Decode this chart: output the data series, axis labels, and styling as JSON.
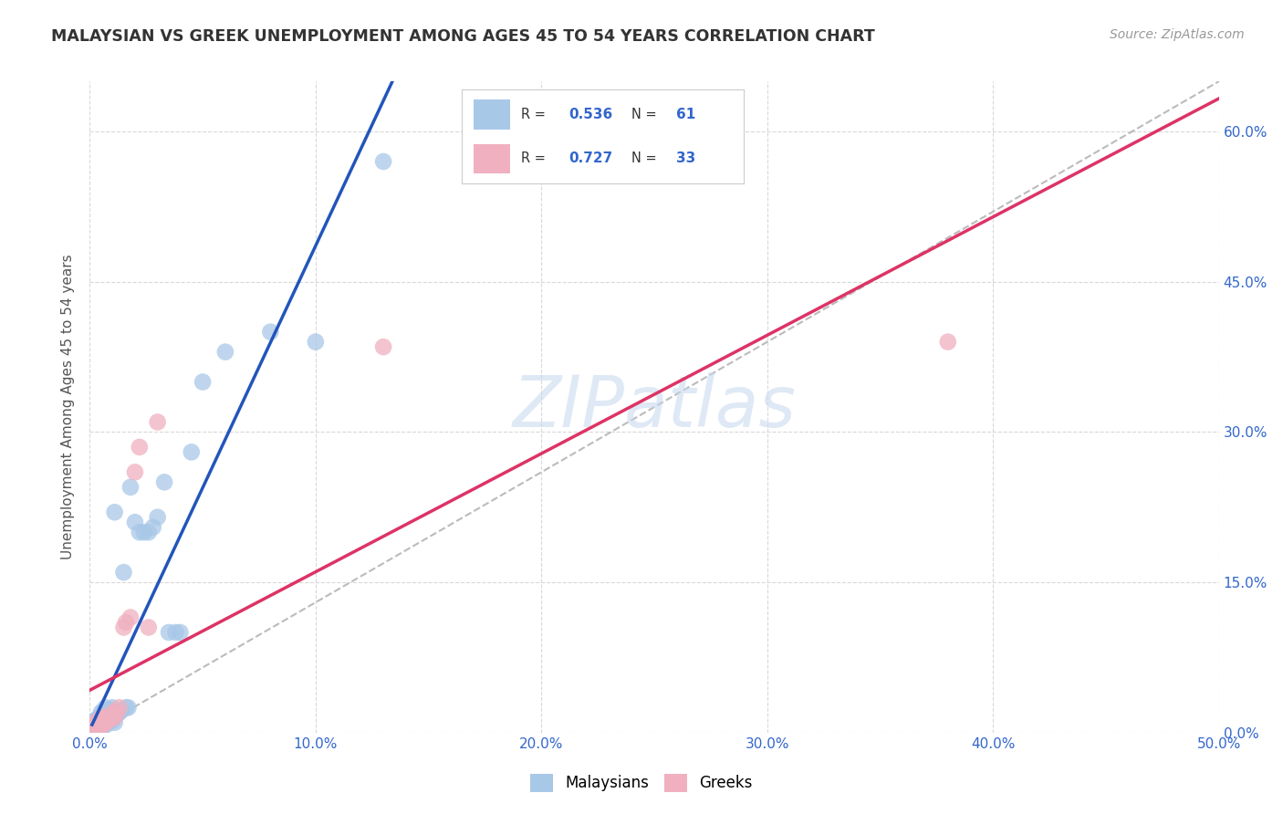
{
  "title": "MALAYSIAN VS GREEK UNEMPLOYMENT AMONG AGES 45 TO 54 YEARS CORRELATION CHART",
  "source": "Source: ZipAtlas.com",
  "ylabel": "Unemployment Among Ages 45 to 54 years",
  "xlim": [
    0.0,
    0.5
  ],
  "ylim": [
    0.0,
    0.65
  ],
  "xticks": [
    0.0,
    0.1,
    0.2,
    0.3,
    0.4,
    0.5
  ],
  "yticks": [
    0.0,
    0.15,
    0.3,
    0.45,
    0.6
  ],
  "ytick_labels_right": [
    "0.0%",
    "15.0%",
    "30.0%",
    "45.0%",
    "60.0%"
  ],
  "xtick_labels": [
    "0.0%",
    "10.0%",
    "20.0%",
    "30.0%",
    "40.0%",
    "50.0%"
  ],
  "background_color": "#ffffff",
  "grid_color": "#d8d8d8",
  "watermark": "ZIPatlas",
  "blue_color": "#a8c8e8",
  "pink_color": "#f0b0c0",
  "blue_line_color": "#2255bb",
  "pink_line_color": "#dd3366",
  "diag_color": "#bbbbbb",
  "r_blue": 0.536,
  "n_blue": 61,
  "r_pink": 0.727,
  "n_pink": 33,
  "malaysians_x": [
    0.001,
    0.001,
    0.001,
    0.001,
    0.002,
    0.002,
    0.002,
    0.002,
    0.002,
    0.003,
    0.003,
    0.003,
    0.003,
    0.003,
    0.003,
    0.004,
    0.004,
    0.004,
    0.004,
    0.005,
    0.005,
    0.005,
    0.005,
    0.005,
    0.006,
    0.006,
    0.006,
    0.007,
    0.007,
    0.007,
    0.008,
    0.008,
    0.009,
    0.009,
    0.01,
    0.01,
    0.011,
    0.011,
    0.012,
    0.013,
    0.014,
    0.015,
    0.016,
    0.017,
    0.018,
    0.02,
    0.022,
    0.024,
    0.026,
    0.028,
    0.03,
    0.033,
    0.035,
    0.038,
    0.04,
    0.045,
    0.05,
    0.06,
    0.08,
    0.1,
    0.13
  ],
  "malaysians_y": [
    0.005,
    0.006,
    0.007,
    0.008,
    0.004,
    0.006,
    0.008,
    0.01,
    0.012,
    0.004,
    0.005,
    0.007,
    0.008,
    0.01,
    0.012,
    0.005,
    0.007,
    0.01,
    0.015,
    0.005,
    0.007,
    0.009,
    0.012,
    0.02,
    0.006,
    0.01,
    0.022,
    0.008,
    0.012,
    0.025,
    0.009,
    0.016,
    0.011,
    0.023,
    0.012,
    0.025,
    0.01,
    0.22,
    0.018,
    0.02,
    0.022,
    0.16,
    0.025,
    0.025,
    0.245,
    0.21,
    0.2,
    0.2,
    0.2,
    0.205,
    0.215,
    0.25,
    0.1,
    0.1,
    0.1,
    0.28,
    0.35,
    0.38,
    0.4,
    0.39,
    0.57
  ],
  "greeks_x": [
    0.001,
    0.001,
    0.002,
    0.002,
    0.002,
    0.003,
    0.003,
    0.003,
    0.004,
    0.004,
    0.004,
    0.005,
    0.005,
    0.005,
    0.006,
    0.006,
    0.007,
    0.007,
    0.008,
    0.009,
    0.01,
    0.011,
    0.012,
    0.013,
    0.015,
    0.016,
    0.018,
    0.02,
    0.022,
    0.026,
    0.03,
    0.38,
    0.13
  ],
  "greeks_y": [
    0.004,
    0.006,
    0.005,
    0.007,
    0.009,
    0.005,
    0.008,
    0.01,
    0.006,
    0.009,
    0.012,
    0.007,
    0.01,
    0.015,
    0.008,
    0.012,
    0.01,
    0.015,
    0.012,
    0.015,
    0.02,
    0.015,
    0.02,
    0.025,
    0.105,
    0.11,
    0.115,
    0.26,
    0.285,
    0.105,
    0.31,
    0.39,
    0.385
  ]
}
